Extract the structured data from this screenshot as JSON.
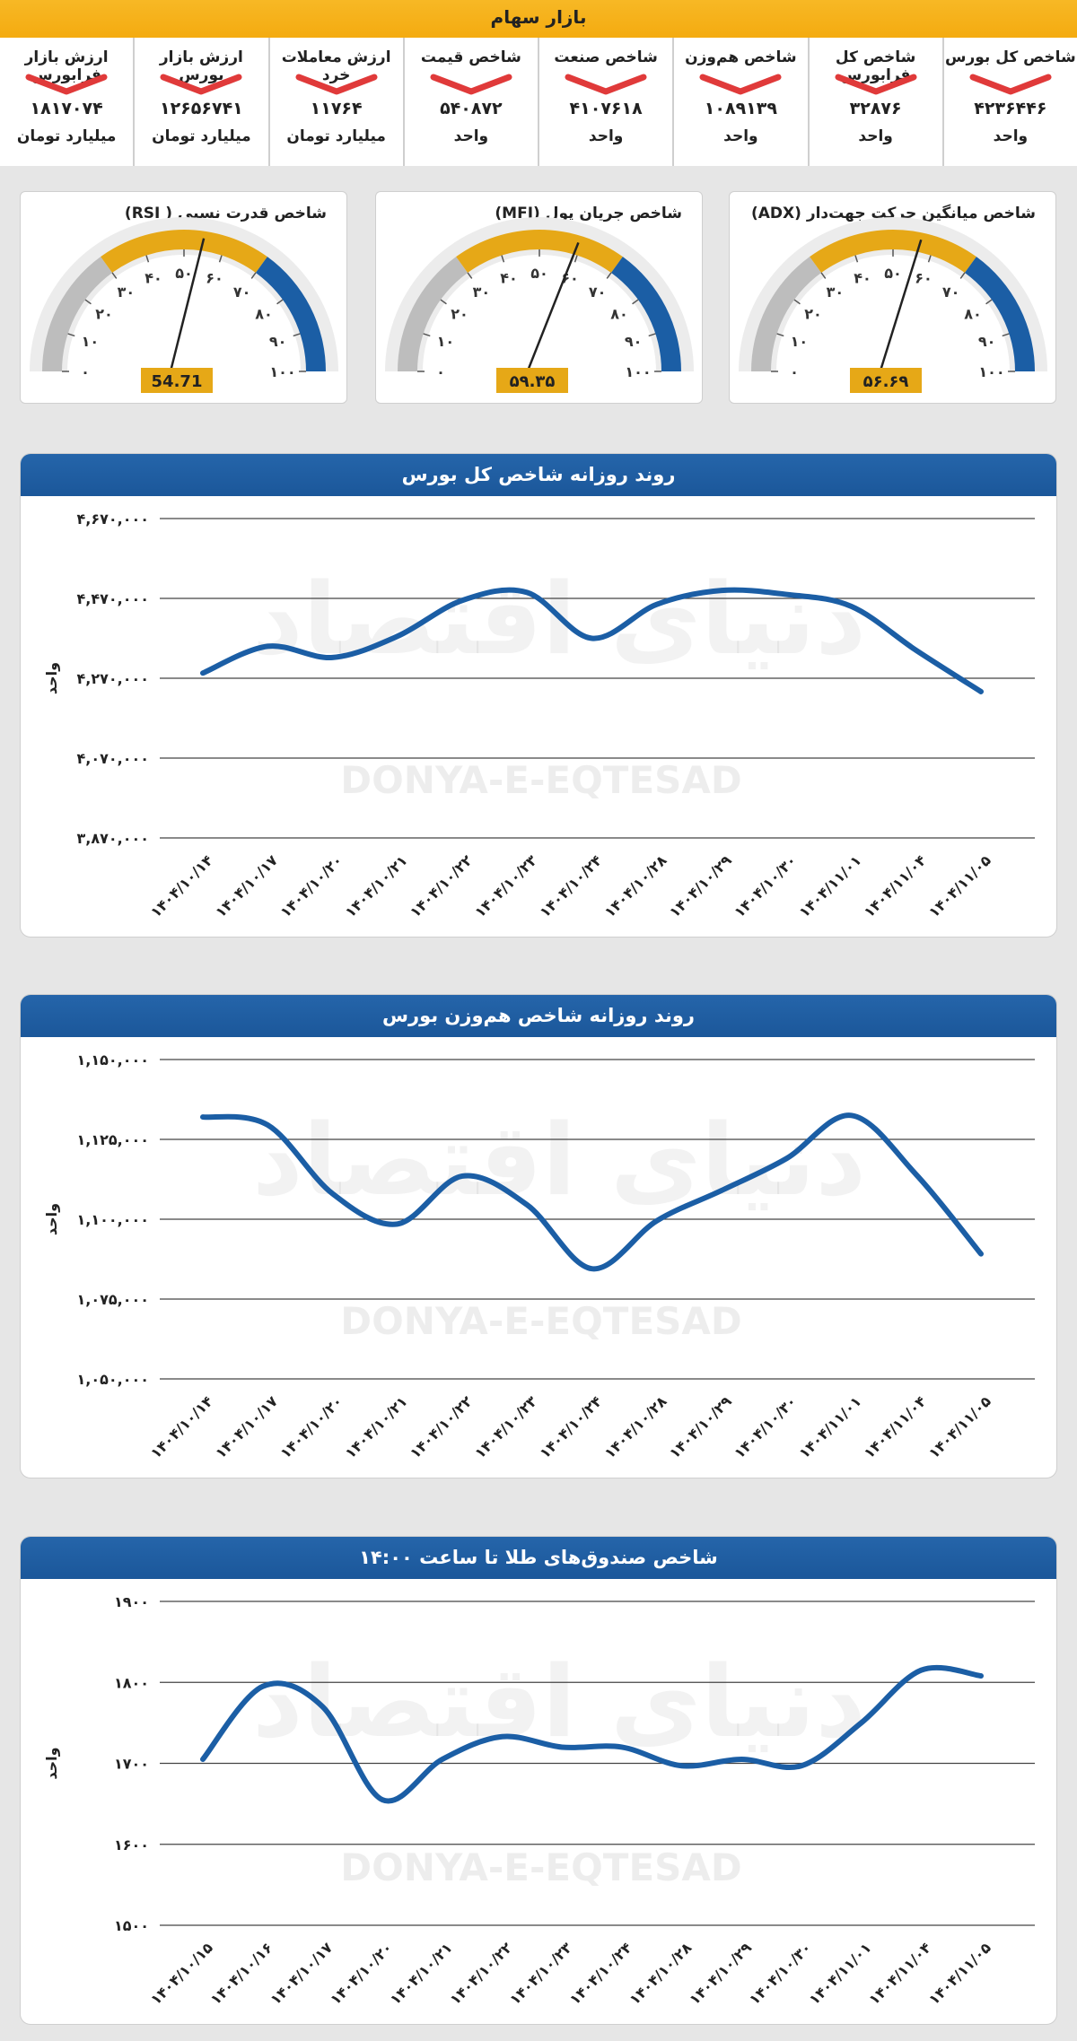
{
  "header": {
    "title": "بازار سهام"
  },
  "stats": [
    {
      "label": "شاخص کل بورس",
      "value": "۴۲۳۶۴۴۶",
      "unit": "واحد"
    },
    {
      "label": "شاخص کل فرابورس",
      "value": "۳۲۸۷۶",
      "unit": "واحد"
    },
    {
      "label": "شاخص هم‌وزن",
      "value": "۱۰۸۹۱۳۹",
      "unit": "واحد"
    },
    {
      "label": "شاخص صنعت",
      "value": "۴۱۰۷۶۱۸",
      "unit": "واحد"
    },
    {
      "label": "شاخص قیمت",
      "value": "۵۴۰۸۷۲",
      "unit": "واحد"
    },
    {
      "label": "ارزش معاملات خرد",
      "value": "۱۱۷۶۴",
      "unit": "میلیارد تومان"
    },
    {
      "label": "ارزش بازار بورس",
      "value": "۱۲۶۵۶۷۴۱",
      "unit": "میلیارد تومان"
    },
    {
      "label": "ارزش بازار فرابورس",
      "value": "۱۸۱۷۰۷۴",
      "unit": "میلیارد تومان"
    }
  ],
  "colors": {
    "accent": "#f4ab10",
    "primary": "#1b5ea5",
    "down": "#e03a3a",
    "grey": "#bdbdbd"
  },
  "gauges": [
    {
      "title": "شاخص میانگین حرکت جهت‌دار (ADX)",
      "value": 56.69,
      "value_label": "۵۶.۶۹",
      "ticks": [
        "۰",
        "۱۰",
        "۲۰",
        "۳۰",
        "۴۰",
        "۵۰",
        "۶۰",
        "۷۰",
        "۸۰",
        "۹۰",
        "۱۰۰"
      ]
    },
    {
      "title": "شاخص جریان پول (MFI)",
      "value": 59.35,
      "value_label": "۵۹.۳۵",
      "ticks": [
        "۰",
        "۱۰",
        "۲۰",
        "۳۰",
        "۴۰",
        "۵۰",
        "۶۰",
        "۷۰",
        "۸۰",
        "۹۰",
        "۱۰۰"
      ]
    },
    {
      "title": "شاخص قدرت نسبی ( RSI)",
      "value": 54.71,
      "value_label": "54.71",
      "ticks": [
        "۰",
        "۱۰",
        "۲۰",
        "۳۰",
        "۴۰",
        "۵۰",
        "۶۰",
        "۷۰",
        "۸۰",
        "۹۰",
        "۱۰۰"
      ]
    }
  ],
  "watermark": {
    "latin": "DONYA-E-EQTESAD",
    "persian": "دنیای اقتصاد"
  },
  "chart_data": [
    {
      "type": "line",
      "title": "روند روزانه شاخص کل بورس",
      "ylabel": "واحد",
      "ylim": [
        3870000,
        4670000
      ],
      "yticks": [
        3870000,
        4070000,
        4270000,
        4470000,
        4670000
      ],
      "ytick_labels": [
        "۳,۸۷۰,۰۰۰",
        "۴,۰۷۰,۰۰۰",
        "۴,۲۷۰,۰۰۰",
        "۴,۴۷۰,۰۰۰",
        "۴,۶۷۰,۰۰۰"
      ],
      "categories": [
        "۱۴۰۴/۱۰/۱۴",
        "۱۴۰۴/۱۰/۱۷",
        "۱۴۰۴/۱۰/۲۰",
        "۱۴۰۴/۱۰/۲۱",
        "۱۴۰۴/۱۰/۲۲",
        "۱۴۰۴/۱۰/۲۳",
        "۱۴۰۴/۱۰/۲۴",
        "۱۴۰۴/۱۰/۲۸",
        "۱۴۰۴/۱۰/۲۹",
        "۱۴۰۴/۱۰/۳۰",
        "۱۴۰۴/۱۱/۰۱",
        "۱۴۰۴/۱۱/۰۴",
        "۱۴۰۴/۱۱/۰۵"
      ],
      "values": [
        4283000,
        4350000,
        4322000,
        4375000,
        4465000,
        4485000,
        4370000,
        4455000,
        4490000,
        4480000,
        4450000,
        4340000,
        4236446
      ]
    },
    {
      "type": "line",
      "title": "روند روزانه شاخص هم‌وزن بورس",
      "ylabel": "واحد",
      "ylim": [
        1050000,
        1150000
      ],
      "yticks": [
        1050000,
        1075000,
        1100000,
        1125000,
        1150000
      ],
      "ytick_labels": [
        "۱,۰۵۰,۰۰۰",
        "۱,۰۷۵,۰۰۰",
        "۱,۱۰۰,۰۰۰",
        "۱,۱۲۵,۰۰۰",
        "۱,۱۵۰,۰۰۰"
      ],
      "categories": [
        "۱۴۰۴/۱۰/۱۴",
        "۱۴۰۴/۱۰/۱۷",
        "۱۴۰۴/۱۰/۲۰",
        "۱۴۰۴/۱۰/۲۱",
        "۱۴۰۴/۱۰/۲۲",
        "۱۴۰۴/۱۰/۲۳",
        "۱۴۰۴/۱۰/۲۴",
        "۱۴۰۴/۱۰/۲۸",
        "۱۴۰۴/۱۰/۲۹",
        "۱۴۰۴/۱۰/۳۰",
        "۱۴۰۴/۱۱/۰۱",
        "۱۴۰۴/۱۱/۰۴",
        "۱۴۰۴/۱۱/۰۵"
      ],
      "values": [
        1132000,
        1129500,
        1108000,
        1098500,
        1113500,
        1104500,
        1084500,
        1099500,
        1109000,
        1119000,
        1132500,
        1114000,
        1089139
      ]
    },
    {
      "type": "line",
      "title": "شاخص صندوق‌های طلا تا ساعت ۱۴:۰۰",
      "ylabel": "واحد",
      "ylim": [
        1500,
        1900
      ],
      "yticks": [
        1500,
        1600,
        1700,
        1800,
        1900
      ],
      "ytick_labels": [
        "۱۵۰۰",
        "۱۶۰۰",
        "۱۷۰۰",
        "۱۸۰۰",
        "۱۹۰۰"
      ],
      "categories": [
        "۱۴۰۴/۱۰/۱۵",
        "۱۴۰۴/۱۰/۱۶",
        "۱۴۰۴/۱۰/۱۷",
        "۱۴۰۴/۱۰/۲۰",
        "۱۴۰۴/۱۰/۲۱",
        "۱۴۰۴/۱۰/۲۲",
        "۱۴۰۴/۱۰/۲۳",
        "۱۴۰۴/۱۰/۲۴",
        "۱۴۰۴/۱۰/۲۸",
        "۱۴۰۴/۱۰/۲۹",
        "۱۴۰۴/۱۰/۳۰",
        "۱۴۰۴/۱۱/۰۱",
        "۱۴۰۴/۱۱/۰۴",
        "۱۴۰۴/۱۱/۰۵"
      ],
      "values": [
        1705,
        1795,
        1770,
        1655,
        1705,
        1733,
        1720,
        1720,
        1697,
        1705,
        1697,
        1750,
        1815,
        1808
      ]
    }
  ]
}
